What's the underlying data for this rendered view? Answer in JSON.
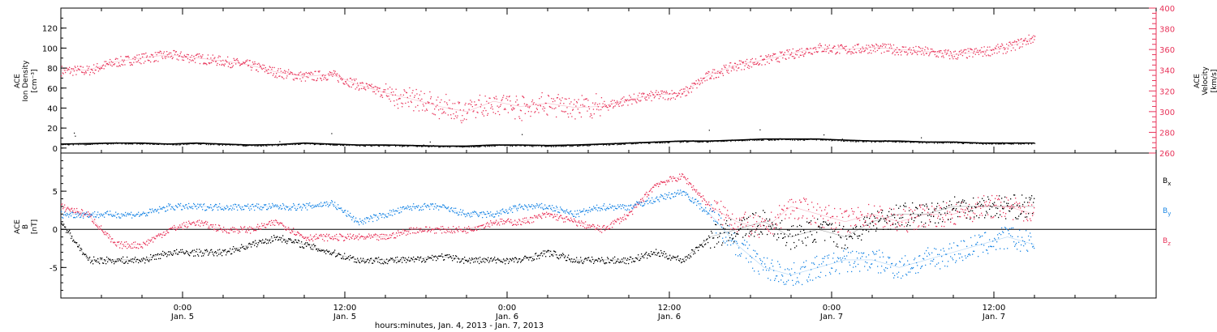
{
  "chart_data": [
    {
      "type": "scatter",
      "panel": "top",
      "ylabel_left": [
        "ACE",
        "Ion Density",
        "[cm⁻³]"
      ],
      "ylabel_right": [
        "ACE",
        "Velocity",
        "[km/s]"
      ],
      "ylim_left": [
        -5,
        140
      ],
      "yticks_left": [
        "0",
        "20",
        "40",
        "60",
        "80",
        "100",
        "120"
      ],
      "ylim_right": [
        260,
        400
      ],
      "yticks_right": [
        "260",
        "280",
        "300",
        "320",
        "340",
        "360",
        "380",
        "400"
      ],
      "colors": {
        "density": "#000000",
        "velocity": "#e8345a"
      },
      "series": [
        {
          "name": "Ion Density",
          "axis": "left",
          "points": [
            [
              0,
              4
            ],
            [
              2,
              4.5
            ],
            [
              4,
              5
            ],
            [
              6,
              5
            ],
            [
              8,
              4
            ],
            [
              10,
              5
            ],
            [
              12,
              4
            ],
            [
              14,
              3
            ],
            [
              16,
              3.5
            ],
            [
              18,
              5
            ],
            [
              20,
              4
            ],
            [
              22,
              3
            ],
            [
              24,
              3
            ],
            [
              26,
              2.5
            ],
            [
              28,
              2
            ],
            [
              30,
              2
            ],
            [
              32,
              3
            ],
            [
              34,
              3
            ],
            [
              36,
              2.5
            ],
            [
              38,
              3
            ],
            [
              40,
              4
            ],
            [
              42,
              5
            ],
            [
              44,
              6
            ],
            [
              46,
              7
            ],
            [
              48,
              7
            ],
            [
              50,
              8
            ],
            [
              52,
              9
            ],
            [
              54,
              9
            ],
            [
              56,
              9
            ],
            [
              58,
              8
            ],
            [
              60,
              7
            ],
            [
              62,
              7
            ],
            [
              64,
              6
            ],
            [
              66,
              6
            ],
            [
              68,
              5
            ],
            [
              70,
              5
            ],
            [
              72,
              5
            ]
          ]
        },
        {
          "name": "Velocity",
          "axis": "right",
          "points": [
            [
              0,
              340
            ],
            [
              2,
              340
            ],
            [
              4,
              348
            ],
            [
              6,
              352
            ],
            [
              8,
              355
            ],
            [
              10,
              352
            ],
            [
              12,
              349
            ],
            [
              14,
              345
            ],
            [
              16,
              338
            ],
            [
              18,
              334
            ],
            [
              20,
              336
            ],
            [
              22,
              326
            ],
            [
              24,
              318
            ],
            [
              26,
              312
            ],
            [
              28,
              305
            ],
            [
              30,
              300
            ],
            [
              32,
              310
            ],
            [
              34,
              305
            ],
            [
              36,
              308
            ],
            [
              38,
              304
            ],
            [
              40,
              305
            ],
            [
              42,
              312
            ],
            [
              44,
              316
            ],
            [
              46,
              318
            ],
            [
              48,
              336
            ],
            [
              50,
              345
            ],
            [
              52,
              350
            ],
            [
              54,
              356
            ],
            [
              56,
              362
            ],
            [
              58,
              360
            ],
            [
              60,
              362
            ],
            [
              62,
              360
            ],
            [
              64,
              358
            ],
            [
              66,
              355
            ],
            [
              68,
              358
            ],
            [
              70,
              362
            ],
            [
              72,
              372
            ]
          ]
        }
      ]
    },
    {
      "type": "scatter",
      "panel": "bottom",
      "ylabel_left": [
        "ACE",
        "B",
        "[nT]"
      ],
      "ylim": [
        -9,
        10
      ],
      "yticks": [
        "-5",
        "0",
        "5"
      ],
      "zero_line": true,
      "colors": {
        "Bx": "#000000",
        "By": "#1e88e5",
        "Bz": "#e8345a"
      },
      "series": [
        {
          "name": "Bx",
          "legend": [
            "B",
            "x"
          ],
          "points": [
            [
              0,
              1
            ],
            [
              2,
              -4
            ],
            [
              4,
              -4
            ],
            [
              6,
              -4
            ],
            [
              8,
              -3
            ],
            [
              10,
              -3
            ],
            [
              12,
              -3
            ],
            [
              14,
              -2
            ],
            [
              16,
              -1
            ],
            [
              18,
              -2
            ],
            [
              20,
              -3
            ],
            [
              22,
              -4
            ],
            [
              24,
              -4
            ],
            [
              26,
              -4
            ],
            [
              28,
              -3.5
            ],
            [
              30,
              -4
            ],
            [
              32,
              -4
            ],
            [
              34,
              -4
            ],
            [
              36,
              -3
            ],
            [
              38,
              -4
            ],
            [
              40,
              -4
            ],
            [
              42,
              -4
            ],
            [
              44,
              -3
            ],
            [
              46,
              -4
            ],
            [
              48,
              -1
            ],
            [
              50,
              0
            ],
            [
              52,
              1
            ],
            [
              54,
              -1
            ],
            [
              56,
              0
            ],
            [
              58,
              -1
            ],
            [
              60,
              1
            ],
            [
              62,
              2
            ],
            [
              64,
              2
            ],
            [
              66,
              3
            ],
            [
              68,
              3
            ],
            [
              70,
              3
            ],
            [
              72,
              3
            ]
          ]
        },
        {
          "name": "By",
          "legend": [
            "B",
            "y"
          ],
          "points": [
            [
              0,
              2
            ],
            [
              2,
              2
            ],
            [
              4,
              2
            ],
            [
              6,
              2
            ],
            [
              8,
              3
            ],
            [
              10,
              3
            ],
            [
              12,
              3
            ],
            [
              14,
              3
            ],
            [
              16,
              3
            ],
            [
              18,
              3
            ],
            [
              20,
              3.5
            ],
            [
              22,
              1
            ],
            [
              24,
              2
            ],
            [
              26,
              3
            ],
            [
              28,
              3
            ],
            [
              30,
              2
            ],
            [
              32,
              2
            ],
            [
              34,
              3
            ],
            [
              36,
              3
            ],
            [
              38,
              2
            ],
            [
              40,
              3
            ],
            [
              42,
              3
            ],
            [
              44,
              4
            ],
            [
              46,
              5
            ],
            [
              48,
              2
            ],
            [
              50,
              -2
            ],
            [
              52,
              -5
            ],
            [
              54,
              -6
            ],
            [
              56,
              -5
            ],
            [
              58,
              -4
            ],
            [
              60,
              -4
            ],
            [
              62,
              -5
            ],
            [
              64,
              -4
            ],
            [
              66,
              -3
            ],
            [
              68,
              -2
            ],
            [
              70,
              -1
            ],
            [
              72,
              -2
            ]
          ]
        },
        {
          "name": "Bz",
          "legend": [
            "B",
            "z"
          ],
          "points": [
            [
              0,
              3
            ],
            [
              2,
              2
            ],
            [
              4,
              -2
            ],
            [
              6,
              -2
            ],
            [
              8,
              0
            ],
            [
              10,
              1
            ],
            [
              12,
              0
            ],
            [
              14,
              0
            ],
            [
              16,
              1
            ],
            [
              18,
              -1
            ],
            [
              20,
              -1
            ],
            [
              22,
              -1
            ],
            [
              24,
              -1
            ],
            [
              26,
              0
            ],
            [
              28,
              0
            ],
            [
              30,
              0
            ],
            [
              32,
              1
            ],
            [
              34,
              1
            ],
            [
              36,
              2
            ],
            [
              38,
              1
            ],
            [
              40,
              0
            ],
            [
              42,
              2
            ],
            [
              44,
              6
            ],
            [
              46,
              7
            ],
            [
              48,
              3
            ],
            [
              50,
              1
            ],
            [
              52,
              0
            ],
            [
              54,
              3
            ],
            [
              56,
              2
            ],
            [
              58,
              1
            ],
            [
              60,
              2
            ],
            [
              62,
              1
            ],
            [
              64,
              2
            ],
            [
              66,
              2
            ],
            [
              68,
              3
            ],
            [
              70,
              3
            ],
            [
              72,
              2
            ]
          ]
        }
      ]
    }
  ],
  "x_axis": {
    "xlabel": "hours:minutes, Jan.  4, 2013 - Jan.  7, 2013",
    "xlim_hours": [
      0,
      81
    ],
    "ticks": [
      {
        "h": 9,
        "time": "0:00",
        "date": "Jan. 5"
      },
      {
        "h": 21,
        "time": "12:00",
        "date": "Jan. 5"
      },
      {
        "h": 33,
        "time": "0:00",
        "date": "Jan. 6"
      },
      {
        "h": 45,
        "time": "12:00",
        "date": "Jan. 6"
      },
      {
        "h": 57,
        "time": "0:00",
        "date": "Jan. 7"
      },
      {
        "h": 69,
        "time": "12:00",
        "date": "Jan. 7"
      }
    ]
  }
}
